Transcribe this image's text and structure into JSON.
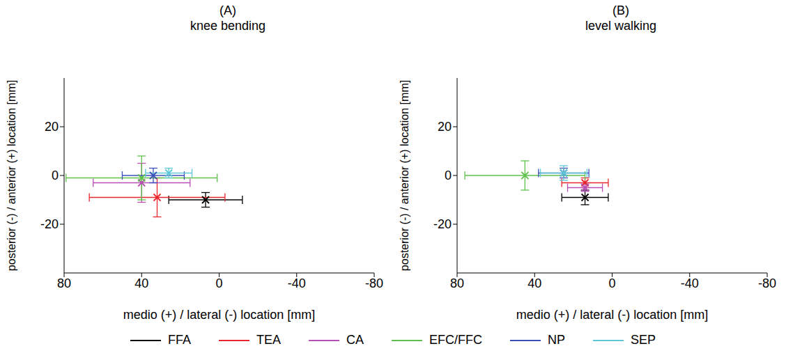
{
  "chart_data": [
    {
      "type": "scatter",
      "label": "(A)",
      "title": "knee bending",
      "x_label": "medio (+) / lateral (-) location [mm]",
      "y_label": "posterior (-) / anterior (+) location [mm]",
      "xlim": [
        80,
        -80
      ],
      "xticks": [
        80,
        40,
        0,
        -40,
        -80
      ],
      "ylim": [
        -40,
        40
      ],
      "yticks": [
        -20,
        0,
        20
      ],
      "legend": "bottom",
      "grid": false,
      "series": [
        {
          "name": "FFA",
          "color": "#000000",
          "marker": "x",
          "x": [
            7
          ],
          "values": [
            -10
          ],
          "x_error": [
            19
          ],
          "y_error": [
            3
          ]
        },
        {
          "name": "TEA",
          "color": "#e8262b",
          "marker": "x",
          "x": [
            32
          ],
          "values": [
            -9
          ],
          "x_error": [
            35
          ],
          "y_error": [
            8
          ]
        },
        {
          "name": "CA",
          "color": "#b84fb5",
          "marker": "x",
          "x": [
            40
          ],
          "values": [
            -3
          ],
          "x_error": [
            25
          ],
          "y_error": [
            8
          ]
        },
        {
          "name": "EFC/FFC",
          "color": "#5ec14a",
          "marker": "x",
          "x": [
            40
          ],
          "values": [
            -1
          ],
          "x_error": [
            39
          ],
          "y_error": [
            9
          ]
        },
        {
          "name": "NP",
          "color": "#3b4fb8",
          "marker": "x",
          "x": [
            34
          ],
          "values": [
            0
          ],
          "x_error": [
            16
          ],
          "y_error": [
            3
          ]
        },
        {
          "name": "SEP",
          "color": "#5fc8d8",
          "marker": "x",
          "x": [
            26
          ],
          "values": [
            1
          ],
          "x_error": [
            12
          ],
          "y_error": [
            2
          ]
        }
      ]
    },
    {
      "type": "scatter",
      "label": "(B)",
      "title": "level walking",
      "x_label": "medio (+) / lateral (-) location [mm]",
      "y_label": "posterior (-) / anterior (+) location [mm]",
      "xlim": [
        80,
        -80
      ],
      "xticks": [
        80,
        40,
        0,
        -40,
        -80
      ],
      "ylim": [
        -40,
        40
      ],
      "yticks": [
        -20,
        0,
        20
      ],
      "legend": "bottom",
      "grid": false,
      "series": [
        {
          "name": "FFA",
          "color": "#000000",
          "marker": "x",
          "x": [
            14
          ],
          "values": [
            -9
          ],
          "x_error": [
            12
          ],
          "y_error": [
            3
          ]
        },
        {
          "name": "TEA",
          "color": "#e8262b",
          "marker": "x",
          "x": [
            14
          ],
          "values": [
            -3
          ],
          "x_error": [
            12
          ],
          "y_error": [
            2
          ]
        },
        {
          "name": "CA",
          "color": "#b84fb5",
          "marker": "x",
          "x": [
            14
          ],
          "values": [
            -5
          ],
          "x_error": [
            9
          ],
          "y_error": [
            1.5
          ]
        },
        {
          "name": "EFC/FFC",
          "color": "#5ec14a",
          "marker": "x",
          "x": [
            45
          ],
          "values": [
            0
          ],
          "x_error": [
            31
          ],
          "y_error": [
            6
          ]
        },
        {
          "name": "NP",
          "color": "#3b4fb8",
          "marker": "x",
          "x": [
            25
          ],
          "values": [
            1
          ],
          "x_error": [
            13
          ],
          "y_error": [
            2
          ]
        },
        {
          "name": "SEP",
          "color": "#5fc8d8",
          "marker": "x",
          "x": [
            25
          ],
          "values": [
            1
          ],
          "x_error": [
            12
          ],
          "y_error": [
            3
          ]
        }
      ]
    }
  ]
}
